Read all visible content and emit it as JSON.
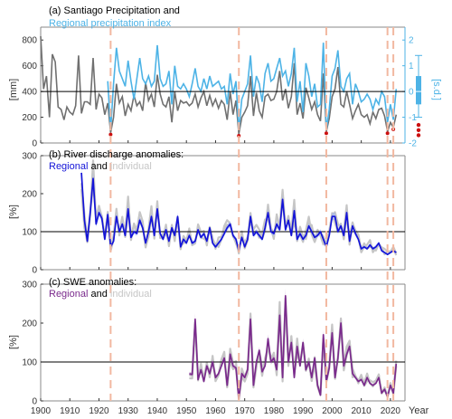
{
  "colors": {
    "gray": "#707070",
    "cyan": "#4db3e6",
    "blue": "#1414d8",
    "blue_band": "#8fa8ff",
    "purple": "#7a2a8c",
    "light_gray": "#c6c6c6",
    "event": "#f2b8a0",
    "drought_dot": "#cc1010"
  },
  "x_axis": {
    "label": "Year",
    "ticks": [
      1900,
      1910,
      1920,
      1930,
      1940,
      1950,
      1960,
      1970,
      1980,
      1990,
      2000,
      2010,
      2020
    ],
    "range": [
      1900,
      2025
    ]
  },
  "event_years": [
    1924,
    1968,
    1998,
    2019,
    2021
  ],
  "chart_data": [
    {
      "type": "line",
      "panel": "a",
      "title_line1": "(a) Santiago Precipitation and",
      "title_line2": "Regional precipitation index",
      "ylabel": "[mm]",
      "ylabel_right": "[s.d.]",
      "ylim": [
        0,
        900
      ],
      "yticks": [
        0,
        200,
        400,
        600,
        800
      ],
      "ylim_right": [
        -2,
        2.5
      ],
      "yticks_right": [
        -2,
        -1,
        0,
        1,
        2
      ],
      "reference_line": 400,
      "series": [
        {
          "name": "Santiago Precipitation",
          "years": [
            1900,
            1901,
            1902,
            1903,
            1904,
            1905,
            1906,
            1907,
            1908,
            1909,
            1910,
            1911,
            1912,
            1913,
            1914,
            1915,
            1916,
            1917,
            1918,
            1919,
            1920,
            1921,
            1922,
            1923,
            1924,
            1925,
            1926,
            1927,
            1928,
            1929,
            1930,
            1931,
            1932,
            1933,
            1934,
            1935,
            1936,
            1937,
            1938,
            1939,
            1940,
            1941,
            1942,
            1943,
            1944,
            1945,
            1946,
            1947,
            1948,
            1949,
            1950,
            1951,
            1952,
            1953,
            1954,
            1955,
            1956,
            1957,
            1958,
            1959,
            1960,
            1961,
            1962,
            1963,
            1964,
            1965,
            1966,
            1967,
            1968,
            1969,
            1970,
            1971,
            1972,
            1973,
            1974,
            1975,
            1976,
            1977,
            1978,
            1979,
            1980,
            1981,
            1982,
            1983,
            1984,
            1985,
            1986,
            1987,
            1988,
            1989,
            1990,
            1991,
            1992,
            1993,
            1994,
            1995,
            1996,
            1997,
            1998,
            1999,
            2000,
            2001,
            2002,
            2003,
            2004,
            2005,
            2006,
            2007,
            2008,
            2009,
            2010,
            2011,
            2012,
            2013,
            2014,
            2015,
            2016,
            2017,
            2018,
            2019,
            2020,
            2021,
            2022
          ],
          "values": [
            830,
            420,
            520,
            200,
            690,
            630,
            280,
            260,
            180,
            280,
            240,
            220,
            290,
            680,
            230,
            320,
            320,
            300,
            660,
            260,
            380,
            350,
            220,
            310,
            80,
            200,
            460,
            310,
            360,
            210,
            300,
            250,
            370,
            290,
            320,
            250,
            470,
            330,
            380,
            280,
            530,
            380,
            300,
            280,
            360,
            160,
            400,
            250,
            330,
            310,
            320,
            290,
            310,
            380,
            280,
            350,
            400,
            290,
            370,
            290,
            340,
            270,
            330,
            300,
            180,
            400,
            220,
            330,
            70,
            200,
            240,
            290,
            520,
            210,
            390,
            250,
            200,
            360,
            380,
            330,
            340,
            400,
            560,
            330,
            420,
            270,
            360,
            620,
            220,
            310,
            190,
            430,
            350,
            260,
            320,
            220,
            170,
            540,
            90,
            190,
            360,
            420,
            590,
            300,
            280,
            400,
            300,
            190,
            250,
            300,
            220,
            200,
            220,
            150,
            240,
            190,
            260,
            270,
            210,
            90,
            160,
            120,
            220
          ]
        },
        {
          "name": "Regional precipitation index",
          "years": [
            1923,
            1924,
            1925,
            1926,
            1927,
            1928,
            1929,
            1930,
            1931,
            1932,
            1933,
            1934,
            1935,
            1936,
            1937,
            1938,
            1939,
            1940,
            1941,
            1942,
            1943,
            1944,
            1945,
            1946,
            1947,
            1948,
            1949,
            1950,
            1951,
            1952,
            1953,
            1954,
            1955,
            1956,
            1957,
            1958,
            1959,
            1960,
            1961,
            1962,
            1963,
            1964,
            1965,
            1966,
            1967,
            1968,
            1969,
            1970,
            1971,
            1972,
            1973,
            1974,
            1975,
            1976,
            1977,
            1978,
            1979,
            1980,
            1981,
            1982,
            1983,
            1984,
            1985,
            1986,
            1987,
            1988,
            1989,
            1990,
            1991,
            1992,
            1993,
            1994,
            1995,
            1996,
            1997,
            1998,
            1999,
            2000,
            2001,
            2002,
            2003,
            2004,
            2005,
            2006,
            2007,
            2008,
            2009,
            2010,
            2011,
            2012,
            2013,
            2014,
            2015,
            2016,
            2017,
            2018,
            2019,
            2020,
            2021,
            2022
          ],
          "values": [
            0.4,
            -1.5,
            0.3,
            1.7,
            0.8,
            0.5,
            0.2,
            1.2,
            0.4,
            -0.3,
            0.5,
            1.3,
            0.5,
            0.3,
            0.6,
            0.2,
            0.4,
            1.8,
            0.5,
            0.2,
            0.3,
            0.8,
            -0.5,
            1.0,
            0.2,
            0.1,
            0.3,
            0.1,
            -0.2,
            0.3,
            0.9,
            0.2,
            0.0,
            0.5,
            0.1,
            0.6,
            0.2,
            0.3,
            0.4,
            0.1,
            0.2,
            -0.5,
            0.7,
            -0.1,
            0.4,
            -1.5,
            -0.3,
            0.0,
            0.3,
            1.4,
            -0.2,
            0.6,
            0.3,
            -0.4,
            0.7,
            1.1,
            0.4,
            0.5,
            0.9,
            1.3,
            0.6,
            0.8,
            0.2,
            0.7,
            1.7,
            -0.4,
            0.4,
            -0.8,
            1.1,
            0.6,
            -0.2,
            0.3,
            -0.6,
            -0.5,
            1.9,
            -1.5,
            -0.7,
            0.6,
            0.9,
            1.6,
            0.2,
            0.0,
            0.5,
            0.7,
            -0.5,
            0.3,
            0.0,
            -0.4,
            -0.3,
            -0.1,
            -0.3,
            -0.7,
            -0.3,
            -0.5,
            0.0,
            -0.2,
            -1.2,
            -0.5,
            -1.1,
            0.1
          ]
        }
      ],
      "boxplot_right": {
        "min": -1.0,
        "q1": -0.5,
        "median": 0.0,
        "q3": 0.6,
        "max": 1.4,
        "outliers": [
          -1.3,
          -1.5,
          -1.7
        ]
      },
      "drought_markers": [
        1924,
        1968,
        1998,
        2019,
        2021
      ]
    },
    {
      "type": "line",
      "panel": "b",
      "title_line1": "(b) River discharge anomalies:",
      "title_part1": "Regional",
      "title_part2": "and",
      "title_part3": "individual",
      "ylabel": "[%]",
      "ylim": [
        0,
        300
      ],
      "yticks": [
        0,
        100,
        200,
        300
      ],
      "reference_line": 100,
      "series": [
        {
          "name": "Regional",
          "years": [
            1914,
            1915,
            1916,
            1917,
            1918,
            1919,
            1920,
            1921,
            1922,
            1923,
            1924,
            1925,
            1926,
            1927,
            1928,
            1929,
            1930,
            1931,
            1932,
            1933,
            1934,
            1935,
            1936,
            1937,
            1938,
            1939,
            1940,
            1941,
            1942,
            1943,
            1944,
            1945,
            1946,
            1947,
            1948,
            1949,
            1950,
            1951,
            1952,
            1953,
            1954,
            1955,
            1956,
            1957,
            1958,
            1959,
            1960,
            1961,
            1962,
            1963,
            1964,
            1965,
            1966,
            1967,
            1968,
            1969,
            1970,
            1971,
            1972,
            1973,
            1974,
            1975,
            1976,
            1977,
            1978,
            1979,
            1980,
            1981,
            1982,
            1983,
            1984,
            1985,
            1986,
            1987,
            1988,
            1989,
            1990,
            1991,
            1992,
            1993,
            1994,
            1995,
            1996,
            1997,
            1998,
            1999,
            2000,
            2001,
            2002,
            2003,
            2004,
            2005,
            2006,
            2007,
            2008,
            2009,
            2010,
            2011,
            2012,
            2013,
            2014,
            2015,
            2016,
            2017,
            2018,
            2019,
            2020,
            2021,
            2022
          ],
          "values": [
            255,
            130,
            75,
            150,
            240,
            120,
            150,
            135,
            80,
            145,
            60,
            75,
            140,
            100,
            120,
            90,
            160,
            85,
            100,
            95,
            130,
            110,
            70,
            100,
            140,
            90,
            160,
            95,
            80,
            105,
            75,
            110,
            90,
            140,
            60,
            80,
            70,
            90,
            70,
            75,
            105,
            85,
            95,
            75,
            110,
            70,
            60,
            70,
            80,
            95,
            110,
            120,
            90,
            80,
            50,
            85,
            60,
            80,
            140,
            90,
            100,
            90,
            80,
            110,
            150,
            100,
            95,
            120,
            105,
            185,
            105,
            130,
            90,
            155,
            80,
            95,
            80,
            90,
            115,
            100,
            85,
            90,
            100,
            80,
            60,
            90,
            140,
            140,
            100,
            115,
            90,
            150,
            75,
            115,
            95,
            80,
            55,
            60,
            55,
            65,
            55,
            60,
            70,
            50,
            45,
            40,
            45,
            50,
            45
          ]
        }
      ]
    },
    {
      "type": "line",
      "panel": "c",
      "title_line1": "(c) SWE anomalies:",
      "title_part1": "Regional",
      "title_part2": "and",
      "title_part3": "individual",
      "ylabel": "[%]",
      "ylim": [
        0,
        300
      ],
      "yticks": [
        0,
        100,
        200,
        300
      ],
      "reference_line": 100,
      "series": [
        {
          "name": "Regional",
          "years": [
            1951,
            1952,
            1953,
            1954,
            1955,
            1956,
            1957,
            1958,
            1959,
            1960,
            1961,
            1962,
            1963,
            1964,
            1965,
            1966,
            1967,
            1968,
            1969,
            1970,
            1971,
            1972,
            1973,
            1974,
            1975,
            1976,
            1977,
            1978,
            1979,
            1980,
            1981,
            1982,
            1983,
            1984,
            1985,
            1986,
            1987,
            1988,
            1989,
            1990,
            1991,
            1992,
            1993,
            1994,
            1995,
            1996,
            1997,
            1998,
            1999,
            2000,
            2001,
            2002,
            2003,
            2004,
            2005,
            2006,
            2007,
            2008,
            2009,
            2010,
            2011,
            2012,
            2013,
            2014,
            2015,
            2016,
            2017,
            2018,
            2019,
            2020,
            2021,
            2022
          ],
          "values": [
            70,
            68,
            210,
            55,
            80,
            50,
            90,
            70,
            100,
            60,
            70,
            90,
            110,
            40,
            120,
            90,
            85,
            5,
            70,
            60,
            80,
            210,
            40,
            100,
            130,
            75,
            90,
            160,
            100,
            110,
            80,
            220,
            60,
            270,
            100,
            150,
            60,
            140,
            90,
            150,
            80,
            100,
            60,
            110,
            40,
            15,
            170,
            50,
            85,
            175,
            60,
            110,
            200,
            90,
            120,
            140,
            70,
            60,
            50,
            55,
            40,
            60,
            45,
            40,
            45,
            60,
            20,
            30,
            10,
            40,
            20,
            95
          ]
        }
      ]
    }
  ]
}
